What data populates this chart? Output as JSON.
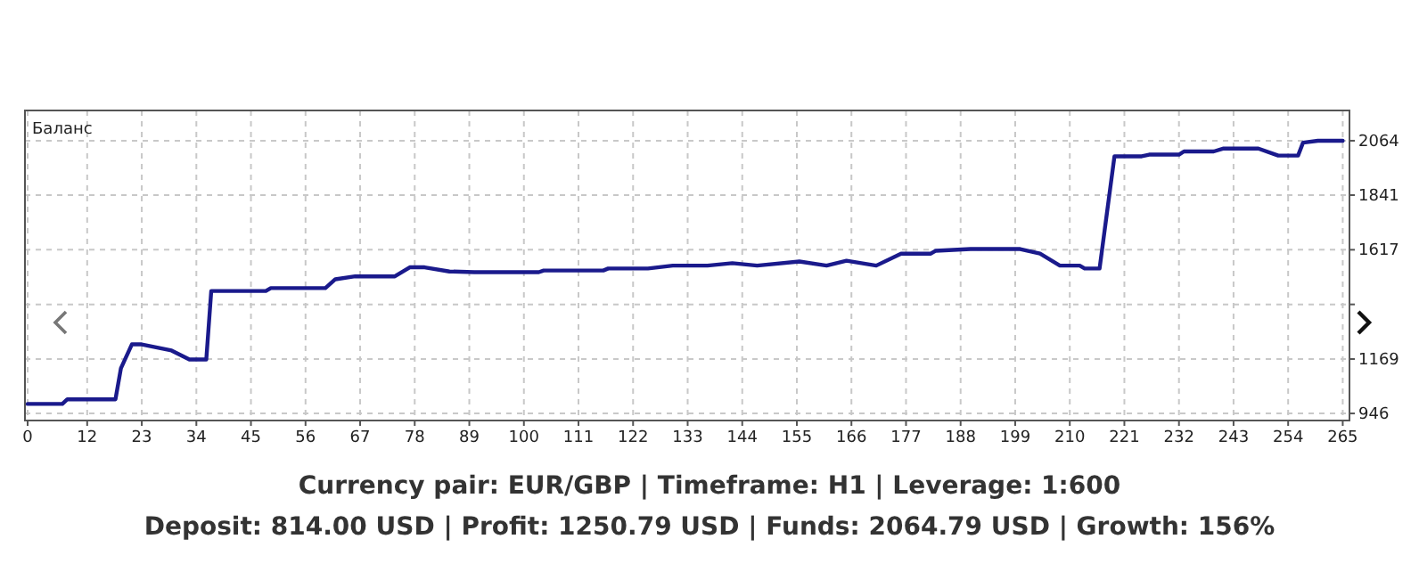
{
  "chart_data": {
    "type": "line",
    "title": "Баланс",
    "x": [
      0,
      7,
      8,
      17.7,
      18.8,
      21,
      23,
      29,
      32.6,
      36,
      37,
      48,
      49,
      60,
      62,
      66,
      74,
      77,
      80,
      85,
      90,
      103,
      104,
      116,
      117,
      125,
      130,
      137,
      142,
      147,
      155.5,
      161,
      165,
      171,
      176,
      182,
      183,
      190,
      200,
      204,
      208,
      212,
      213,
      216,
      219,
      224.5,
      226,
      232,
      233,
      239,
      241,
      248,
      252,
      256,
      257,
      260,
      265
    ],
    "series": [
      {
        "color": "#1a1a8c",
        "values": [
          985,
          985,
          1004,
          1004,
          1131,
          1229,
          1229,
          1204,
          1167,
          1167,
          1448,
          1448,
          1460,
          1460,
          1496,
          1508,
          1508,
          1545,
          1545,
          1528,
          1525,
          1525,
          1532,
          1532,
          1540,
          1540,
          1552,
          1552,
          1562,
          1552,
          1569,
          1552,
          1572,
          1552,
          1601,
          1601,
          1613,
          1620,
          1620,
          1601,
          1552,
          1552,
          1540,
          1540,
          2000,
          2000,
          2007,
          2007,
          2020,
          2020,
          2032,
          2032,
          2003,
          2003,
          2056,
          2064,
          2064
        ]
      }
    ],
    "xlim": [
      0,
      266
    ],
    "xticks": [
      0,
      12,
      23,
      34,
      45,
      56,
      67,
      78,
      89,
      100,
      111,
      122,
      133,
      144,
      155,
      166,
      177,
      188,
      199,
      210,
      221,
      232,
      243,
      254,
      265
    ],
    "ylim": [
      917,
      2188
    ],
    "yticks": [
      946,
      1169,
      {
        "value": 1393,
        "label": null
      },
      1617,
      1841,
      2064
    ],
    "grid": true,
    "marker": "none",
    "line_style": "solid",
    "annotations": [
      "Currency pair: EUR/GBP | Timeframe: H1 | Leverage: 1:600",
      "Deposit: 814.00 USD | Profit: 1250.79 USD | Funds: 2064.79 USD | Growth: 156%"
    ]
  }
}
